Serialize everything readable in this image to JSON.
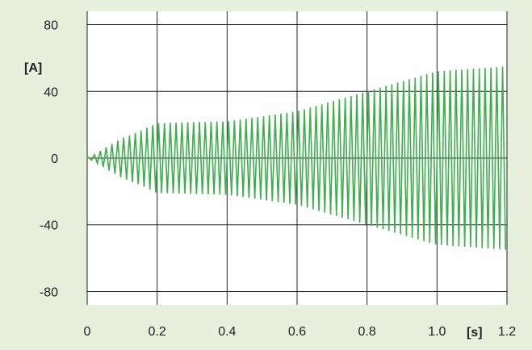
{
  "chart_data": {
    "type": "line",
    "title": "",
    "xlabel": "[s]",
    "ylabel": "[A]",
    "xlim": [
      0,
      1.2
    ],
    "ylim": [
      -88,
      88
    ],
    "grid": true,
    "x_ticks": [
      "0",
      "0.2",
      "0.4",
      "0.6",
      "0.8",
      "1.0",
      "1.2"
    ],
    "y_ticks": [
      "80",
      "40",
      "0",
      "-40",
      "-80"
    ],
    "x_tick_values": [
      0,
      0.2,
      0.4,
      0.6,
      0.8,
      1.0,
      1.2
    ],
    "y_tick_values": [
      80,
      40,
      0,
      -40,
      -80
    ],
    "colors": {
      "background": "#e6f0dc",
      "plot_background": "#ffffff",
      "series": "#3cae4a",
      "grid": "#222222"
    },
    "series": [
      {
        "name": "",
        "frequency_hz": 60,
        "envelope": [
          {
            "t": 0.0,
            "peak": 0
          },
          {
            "t": 0.02,
            "peak": 2
          },
          {
            "t": 0.05,
            "peak": 6
          },
          {
            "t": 0.1,
            "peak": 12
          },
          {
            "t": 0.15,
            "peak": 16
          },
          {
            "t": 0.2,
            "peak": 21
          },
          {
            "t": 0.4,
            "peak": 22
          },
          {
            "t": 0.6,
            "peak": 28
          },
          {
            "t": 0.8,
            "peak": 40
          },
          {
            "t": 1.0,
            "peak": 52
          },
          {
            "t": 1.2,
            "peak": 55
          }
        ]
      }
    ]
  }
}
